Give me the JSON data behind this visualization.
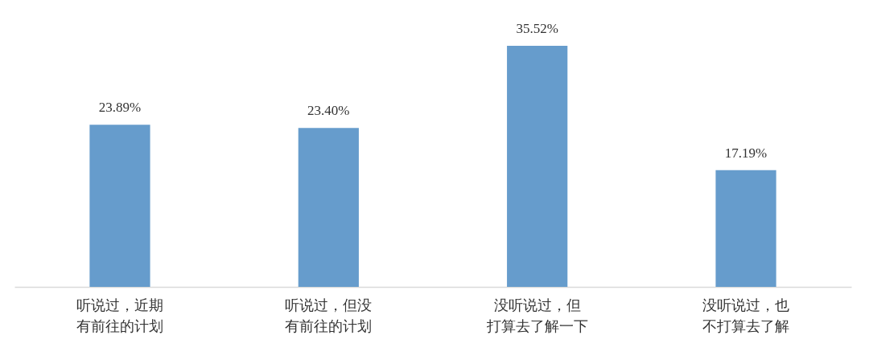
{
  "chart_data": {
    "type": "bar",
    "categories": [
      "听说过，近期有前往的计划",
      "听说过，但没有前往的计划",
      "没听说过，但打算去了解一下",
      "没听说过，也不打算去了解"
    ],
    "values": [
      23.89,
      23.4,
      35.52,
      17.19
    ],
    "color": "#669ccc",
    "value_labels": [
      "23.89%",
      "23.40%",
      "35.52%",
      "17.19%"
    ]
  }
}
